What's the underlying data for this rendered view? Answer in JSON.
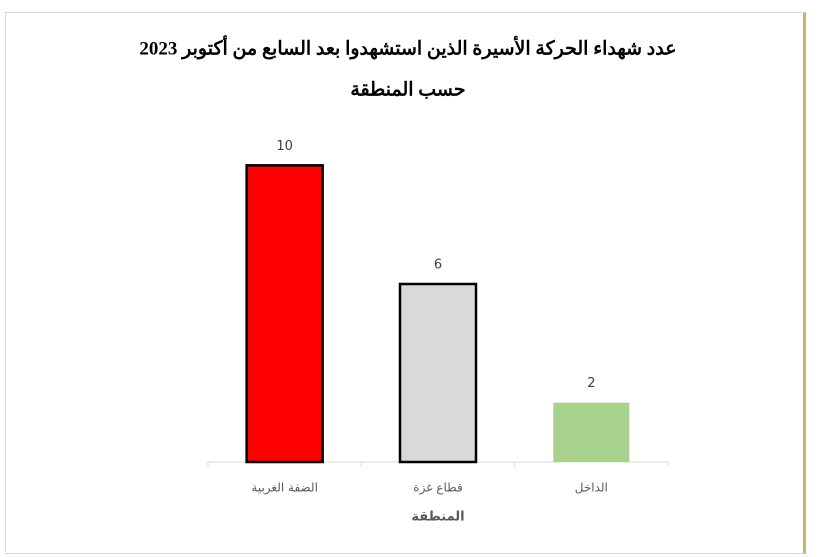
{
  "chart_data": {
    "type": "bar",
    "title": [
      "عدد شهداء الحركة الأسيرة الذين استشهدوا بعد السابع من أكتوبر 2023",
      "حسب المنطقة"
    ],
    "x_label": "المنطقة",
    "categories": [
      "الضفة الغربية",
      "قطاع غزة",
      "الداخل"
    ],
    "values": [
      10,
      6,
      2
    ],
    "colors": [
      "#ff0000",
      "#d9d9d9",
      "#a9d18e"
    ],
    "edgecolors": [
      "#000000",
      "#000000",
      "#a9d18e"
    ],
    "ylim": [
      0,
      12
    ]
  }
}
